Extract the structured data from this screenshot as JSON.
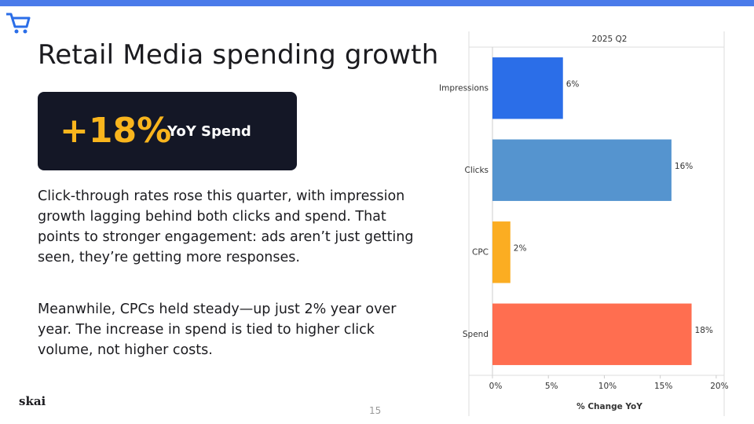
{
  "slide": {
    "title": "Retail Media spending growth",
    "kpi": {
      "value": "+18%",
      "label": "YoY Spend"
    },
    "paragraphs": [
      "Click-through rates rose this quarter, with impression growth lagging behind both clicks and spend. That points to stronger engagement: ads aren’t just getting seen, they’re getting more responses.",
      "Meanwhile, CPCs held steady—up just 2% year over year. The increase in spend is tied to higher click volume, not higher costs."
    ],
    "logo": "skai",
    "page_number": "15"
  },
  "chart_data": {
    "type": "bar",
    "orientation": "horizontal",
    "title": "2025 Q2",
    "x_label": "% Change YoY",
    "categories": [
      "Impressions",
      "Clicks",
      "CPC",
      "Spend"
    ],
    "values": [
      6.3,
      16,
      1.6,
      17.8
    ],
    "value_labels": [
      "6%",
      "16%",
      "2%",
      "18%"
    ],
    "colors": [
      "#2b6ee8",
      "#5594cf",
      "#fbad22",
      "#ff6e50"
    ],
    "xlim": [
      0,
      20.5
    ],
    "xticks": [
      {
        "value": 0,
        "label": "0%"
      },
      {
        "value": 5,
        "label": "5%"
      },
      {
        "value": 10,
        "label": "10%"
      },
      {
        "value": 15,
        "label": "15%"
      },
      {
        "value": 20,
        "label": "20%"
      }
    ],
    "grid": false
  }
}
